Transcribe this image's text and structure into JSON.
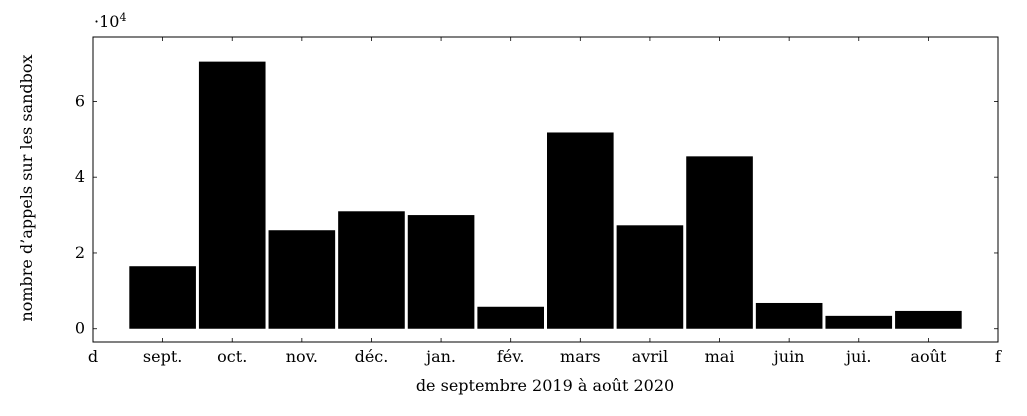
{
  "chart_data": {
    "type": "bar",
    "categories": [
      "sept.",
      "oct.",
      "nov.",
      "déc.",
      "jan.",
      "fév.",
      "mars",
      "avril",
      "mai",
      "juin",
      "jui.",
      "août"
    ],
    "values": [
      16500,
      70500,
      26000,
      31000,
      30000,
      5800,
      51800,
      27300,
      45500,
      6800,
      3400,
      4700
    ],
    "x_edge_labels": [
      "d",
      "f"
    ],
    "xlabel": "de septembre 2019 à août 2020",
    "ylabel": "nombre d’appels sur les sandbox",
    "ylim": [
      -3500,
      77000
    ],
    "y_ticks": [
      0,
      20000,
      40000,
      60000
    ],
    "y_tick_labels": [
      "0",
      "2",
      "4",
      "6"
    ],
    "y_scale_base": "·10",
    "y_scale_exponent": "4",
    "grid": false,
    "legend": "none",
    "bar_color": "#000000"
  }
}
